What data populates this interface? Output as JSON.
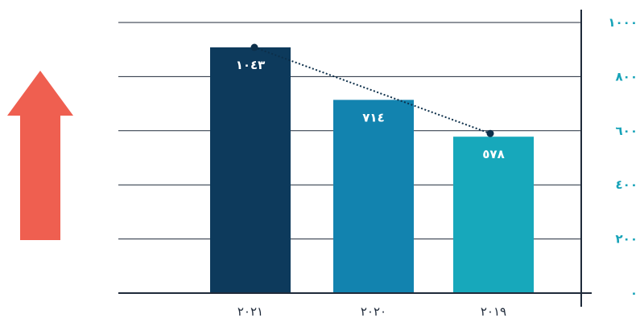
{
  "chart_data": {
    "type": "bar",
    "categories": [
      "٢٠٢١",
      "٢٠٢٠",
      "٢٠١٩"
    ],
    "values": [
      1043,
      714,
      578
    ],
    "value_labels": [
      "١٠٤٣",
      "٧١٤",
      "٥٧٨"
    ],
    "ylim": [
      0,
      1000
    ],
    "yticks": [
      0,
      200,
      400,
      600,
      800,
      1000
    ],
    "ytick_labels": [
      "٠",
      "٢٠٠",
      "٤٠٠",
      "٦٠٠",
      "٨٠٠",
      "١٠٠٠"
    ],
    "grid": true,
    "y_axis_position": "right",
    "colors": [
      "#0d3a5c",
      "#1283af",
      "#17a8bb"
    ],
    "trend_line": {
      "style": "dotted",
      "from_category": "٢٠٢١",
      "to_category": "٢٠١٩",
      "color": "#0d2f4a"
    },
    "decoration": {
      "icon": "up-arrow-icon",
      "color": "#ef5f50"
    }
  }
}
